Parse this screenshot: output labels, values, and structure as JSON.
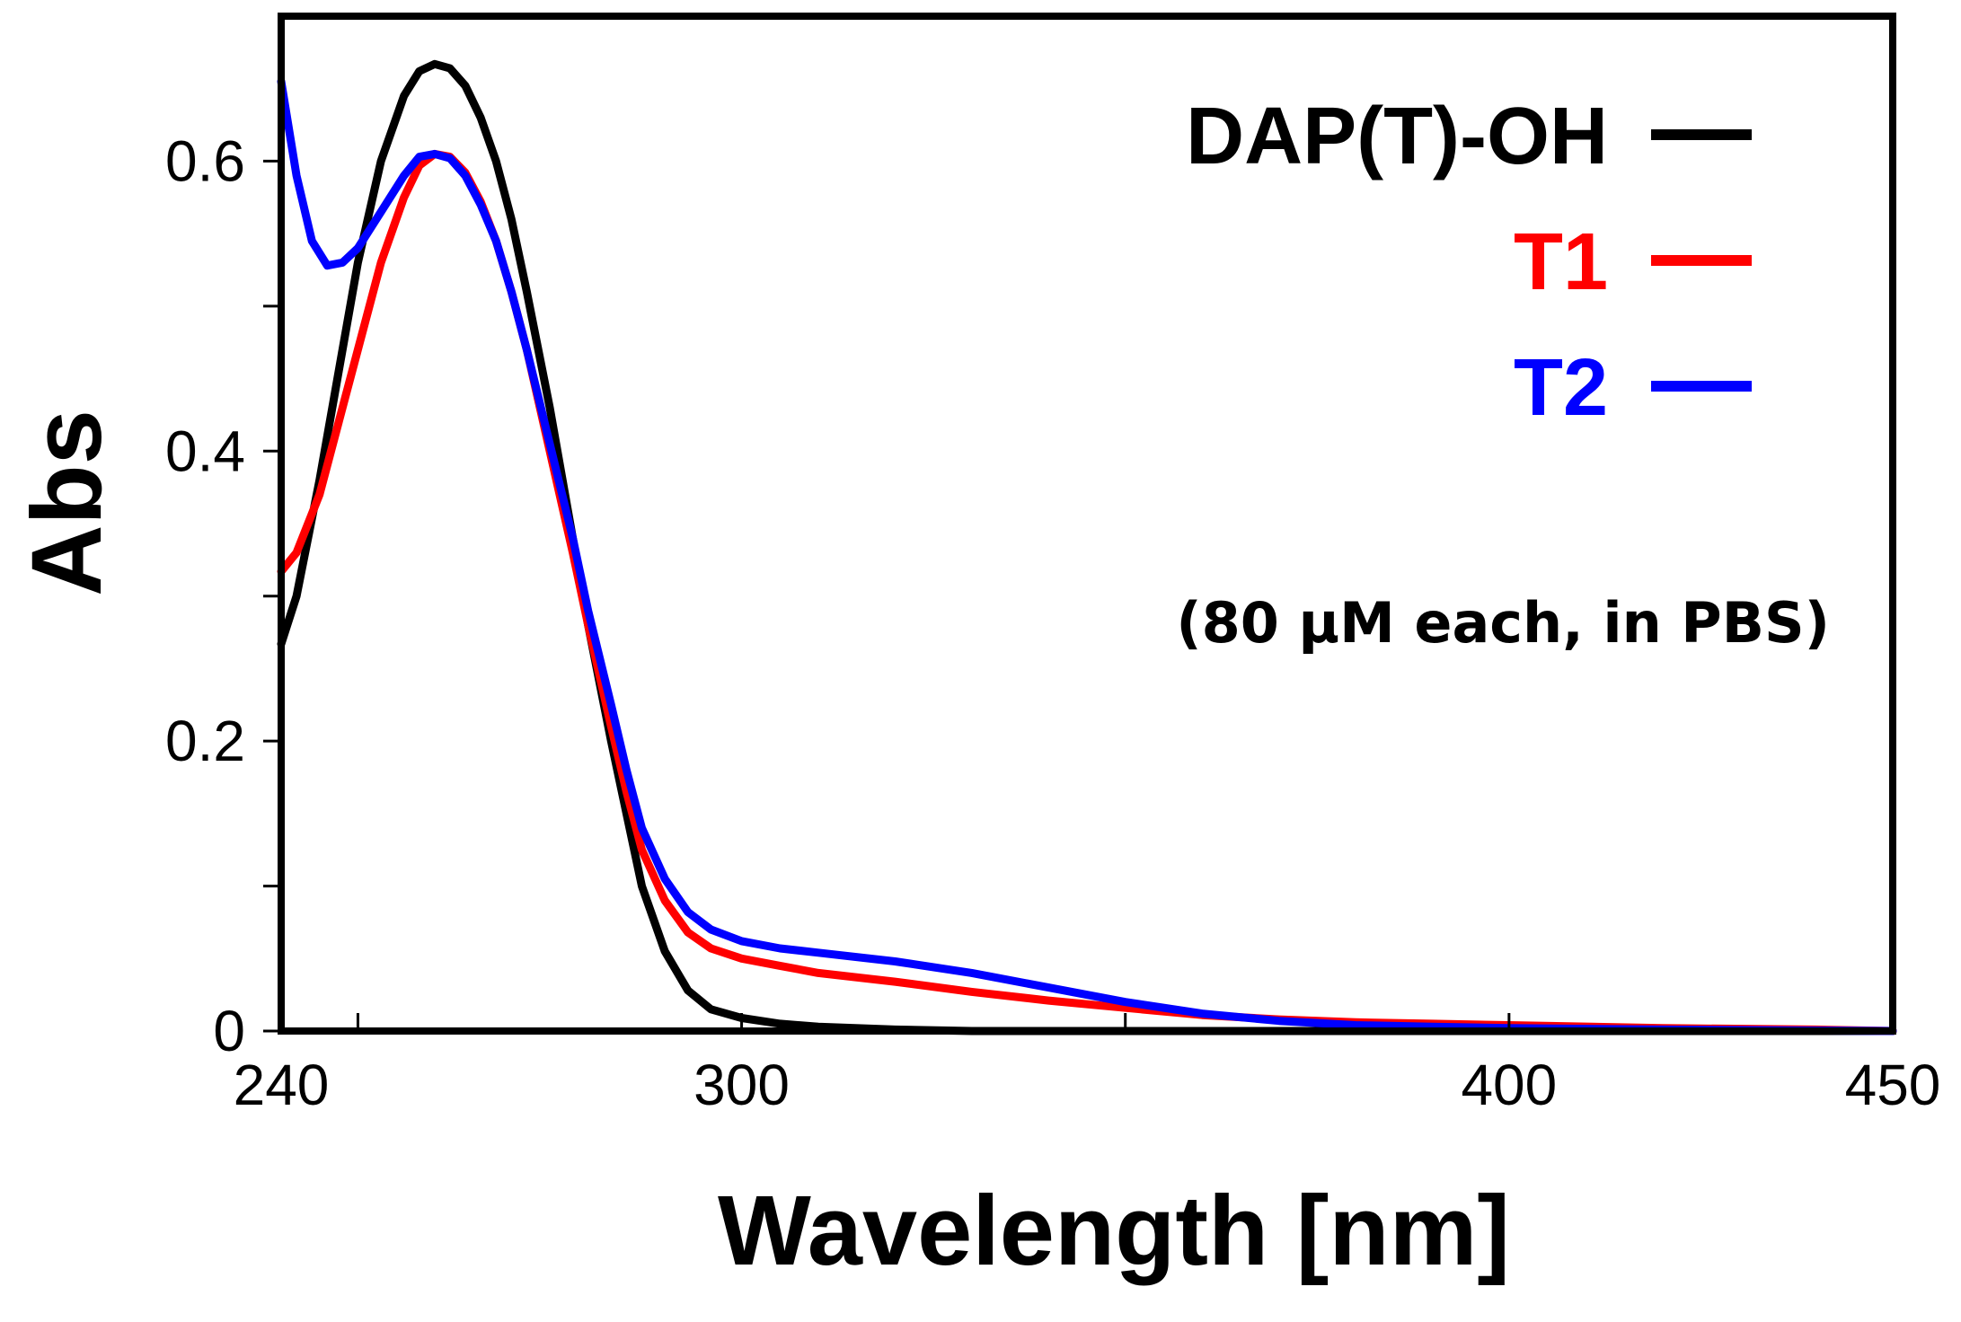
{
  "chart_data": {
    "type": "line",
    "xlabel": "Wavelength [nm]",
    "ylabel": "Abs",
    "xlim": [
      240,
      450
    ],
    "ylim": [
      0,
      0.7
    ],
    "x_ticks": [
      {
        "value": 240,
        "label": "240"
      },
      {
        "value": 250,
        "label": ""
      },
      {
        "value": 300,
        "label": "300"
      },
      {
        "value": 350,
        "label": ""
      },
      {
        "value": 400,
        "label": "400"
      },
      {
        "value": 450,
        "label": "450"
      }
    ],
    "y_ticks": [
      {
        "value": 0,
        "label": "0"
      },
      {
        "value": 0.1,
        "label": ""
      },
      {
        "value": 0.2,
        "label": "0.2"
      },
      {
        "value": 0.3,
        "label": ""
      },
      {
        "value": 0.4,
        "label": "0.4"
      },
      {
        "value": 0.5,
        "label": ""
      },
      {
        "value": 0.6,
        "label": "0.6"
      }
    ],
    "grid": false,
    "legend_position": "top-right",
    "annotation": "(80 μM each, in PBS)",
    "series": [
      {
        "name": "DAP(T)-OH",
        "color": "#000000",
        "points": [
          [
            240,
            0.267
          ],
          [
            242,
            0.3
          ],
          [
            245,
            0.38
          ],
          [
            248,
            0.47
          ],
          [
            250,
            0.53
          ],
          [
            253,
            0.6
          ],
          [
            256,
            0.645
          ],
          [
            258,
            0.662
          ],
          [
            260,
            0.667
          ],
          [
            262,
            0.664
          ],
          [
            264,
            0.652
          ],
          [
            266,
            0.63
          ],
          [
            268,
            0.6
          ],
          [
            270,
            0.56
          ],
          [
            272,
            0.51
          ],
          [
            275,
            0.43
          ],
          [
            278,
            0.34
          ],
          [
            280,
            0.28
          ],
          [
            283,
            0.2
          ],
          [
            285,
            0.15
          ],
          [
            287,
            0.1
          ],
          [
            290,
            0.055
          ],
          [
            293,
            0.028
          ],
          [
            296,
            0.015
          ],
          [
            300,
            0.009
          ],
          [
            305,
            0.005
          ],
          [
            310,
            0.003
          ],
          [
            320,
            0.001
          ],
          [
            330,
            0.0
          ],
          [
            350,
            0.0
          ],
          [
            400,
            0.0
          ],
          [
            450,
            0.0
          ]
        ]
      },
      {
        "name": "T1",
        "color": "#ff0000",
        "points": [
          [
            240,
            0.317
          ],
          [
            242,
            0.33
          ],
          [
            245,
            0.37
          ],
          [
            248,
            0.43
          ],
          [
            250,
            0.47
          ],
          [
            253,
            0.53
          ],
          [
            256,
            0.575
          ],
          [
            258,
            0.597
          ],
          [
            260,
            0.605
          ],
          [
            262,
            0.603
          ],
          [
            264,
            0.592
          ],
          [
            266,
            0.572
          ],
          [
            268,
            0.545
          ],
          [
            270,
            0.51
          ],
          [
            272,
            0.47
          ],
          [
            275,
            0.4
          ],
          [
            278,
            0.33
          ],
          [
            280,
            0.28
          ],
          [
            283,
            0.21
          ],
          [
            285,
            0.165
          ],
          [
            287,
            0.125
          ],
          [
            290,
            0.09
          ],
          [
            293,
            0.068
          ],
          [
            296,
            0.057
          ],
          [
            300,
            0.05
          ],
          [
            305,
            0.045
          ],
          [
            310,
            0.04
          ],
          [
            320,
            0.034
          ],
          [
            330,
            0.027
          ],
          [
            340,
            0.021
          ],
          [
            350,
            0.016
          ],
          [
            360,
            0.011
          ],
          [
            370,
            0.008
          ],
          [
            380,
            0.006
          ],
          [
            390,
            0.005
          ],
          [
            400,
            0.004
          ],
          [
            420,
            0.002
          ],
          [
            440,
            0.001
          ],
          [
            450,
            0.0
          ]
        ]
      },
      {
        "name": "T2",
        "color": "#0000ff",
        "points": [
          [
            240,
            0.655
          ],
          [
            242,
            0.59
          ],
          [
            244,
            0.545
          ],
          [
            246,
            0.528
          ],
          [
            248,
            0.53
          ],
          [
            250,
            0.54
          ],
          [
            253,
            0.565
          ],
          [
            256,
            0.59
          ],
          [
            258,
            0.603
          ],
          [
            260,
            0.605
          ],
          [
            262,
            0.602
          ],
          [
            264,
            0.59
          ],
          [
            266,
            0.57
          ],
          [
            268,
            0.545
          ],
          [
            270,
            0.51
          ],
          [
            272,
            0.47
          ],
          [
            275,
            0.405
          ],
          [
            278,
            0.34
          ],
          [
            280,
            0.29
          ],
          [
            283,
            0.225
          ],
          [
            285,
            0.18
          ],
          [
            287,
            0.14
          ],
          [
            290,
            0.105
          ],
          [
            293,
            0.082
          ],
          [
            296,
            0.07
          ],
          [
            300,
            0.062
          ],
          [
            305,
            0.057
          ],
          [
            310,
            0.054
          ],
          [
            320,
            0.048
          ],
          [
            330,
            0.04
          ],
          [
            340,
            0.03
          ],
          [
            350,
            0.02
          ],
          [
            360,
            0.012
          ],
          [
            370,
            0.007
          ],
          [
            380,
            0.004
          ],
          [
            390,
            0.003
          ],
          [
            400,
            0.002
          ],
          [
            420,
            0.001
          ],
          [
            450,
            0.0
          ]
        ]
      }
    ]
  }
}
